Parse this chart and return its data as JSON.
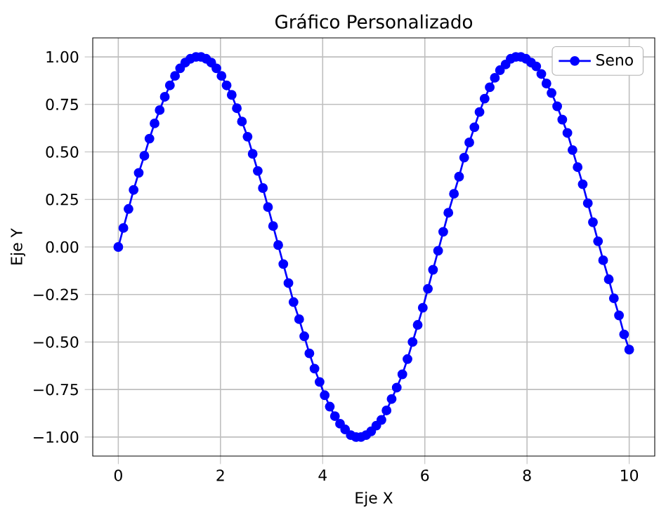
{
  "chart_data": {
    "type": "line",
    "title": "Gráfico Personalizado",
    "xlabel": "Eje X",
    "ylabel": "Eje Y",
    "xlim": [
      -0.5,
      10.5
    ],
    "ylim": [
      -1.1,
      1.1
    ],
    "xticks": [
      0,
      2,
      4,
      6,
      8,
      10
    ],
    "yticks": [
      {
        "value": -1,
        "label": "−1.00"
      },
      {
        "value": -0.75,
        "label": "−0.75"
      },
      {
        "value": -0.5,
        "label": "−0.50"
      },
      {
        "value": -0.25,
        "label": "−0.25"
      },
      {
        "value": 0,
        "label": "0.00"
      },
      {
        "value": 0.25,
        "label": "0.25"
      },
      {
        "value": 0.5,
        "label": "0.50"
      },
      {
        "value": 0.75,
        "label": "0.75"
      },
      {
        "value": 1,
        "label": "1.00"
      }
    ],
    "grid": true,
    "legend": "top right",
    "marker": "circle",
    "line_style": "solid",
    "series": [
      {
        "name": "Seno",
        "color": "#0000ff",
        "x": [
          0,
          0.1,
          0.2,
          0.3,
          0.4,
          0.51,
          0.61,
          0.71,
          0.81,
          0.91,
          1.01,
          1.11,
          1.21,
          1.31,
          1.41,
          1.52,
          1.62,
          1.72,
          1.82,
          1.92,
          2.02,
          2.12,
          2.22,
          2.32,
          2.42,
          2.53,
          2.63,
          2.73,
          2.83,
          2.93,
          3.03,
          3.13,
          3.23,
          3.33,
          3.43,
          3.54,
          3.64,
          3.74,
          3.84,
          3.94,
          4.04,
          4.14,
          4.24,
          4.34,
          4.44,
          4.55,
          4.65,
          4.75,
          4.85,
          4.95,
          5.05,
          5.15,
          5.25,
          5.35,
          5.45,
          5.56,
          5.66,
          5.76,
          5.86,
          5.96,
          6.06,
          6.16,
          6.26,
          6.36,
          6.46,
          6.57,
          6.67,
          6.77,
          6.87,
          6.97,
          7.07,
          7.17,
          7.27,
          7.37,
          7.47,
          7.58,
          7.68,
          7.78,
          7.88,
          7.98,
          8.08,
          8.18,
          8.28,
          8.38,
          8.48,
          8.59,
          8.69,
          8.79,
          8.89,
          8.99,
          9.09,
          9.19,
          9.29,
          9.39,
          9.49,
          9.6,
          9.7,
          9.8,
          9.9,
          10
        ],
        "values": [
          0,
          0.1,
          0.2,
          0.3,
          0.39,
          0.48,
          0.57,
          0.65,
          0.72,
          0.79,
          0.85,
          0.9,
          0.94,
          0.97,
          0.99,
          1,
          1,
          0.99,
          0.97,
          0.94,
          0.9,
          0.85,
          0.8,
          0.73,
          0.66,
          0.58,
          0.49,
          0.4,
          0.31,
          0.21,
          0.11,
          0.01,
          -0.09,
          -0.19,
          -0.29,
          -0.38,
          -0.47,
          -0.56,
          -0.64,
          -0.71,
          -0.78,
          -0.84,
          -0.89,
          -0.93,
          -0.96,
          -0.99,
          -1,
          -1,
          -0.99,
          -0.97,
          -0.94,
          -0.91,
          -0.86,
          -0.8,
          -0.74,
          -0.67,
          -0.59,
          -0.5,
          -0.41,
          -0.32,
          -0.22,
          -0.12,
          -0.02,
          0.08,
          0.18,
          0.28,
          0.37,
          0.47,
          0.55,
          0.63,
          0.71,
          0.78,
          0.84,
          0.89,
          0.93,
          0.96,
          0.99,
          1,
          1,
          0.99,
          0.97,
          0.95,
          0.91,
          0.86,
          0.81,
          0.74,
          0.67,
          0.6,
          0.51,
          0.42,
          0.33,
          0.23,
          0.13,
          0.03,
          -0.07,
          -0.17,
          -0.27,
          -0.36,
          -0.46,
          -0.54
        ]
      }
    ]
  }
}
